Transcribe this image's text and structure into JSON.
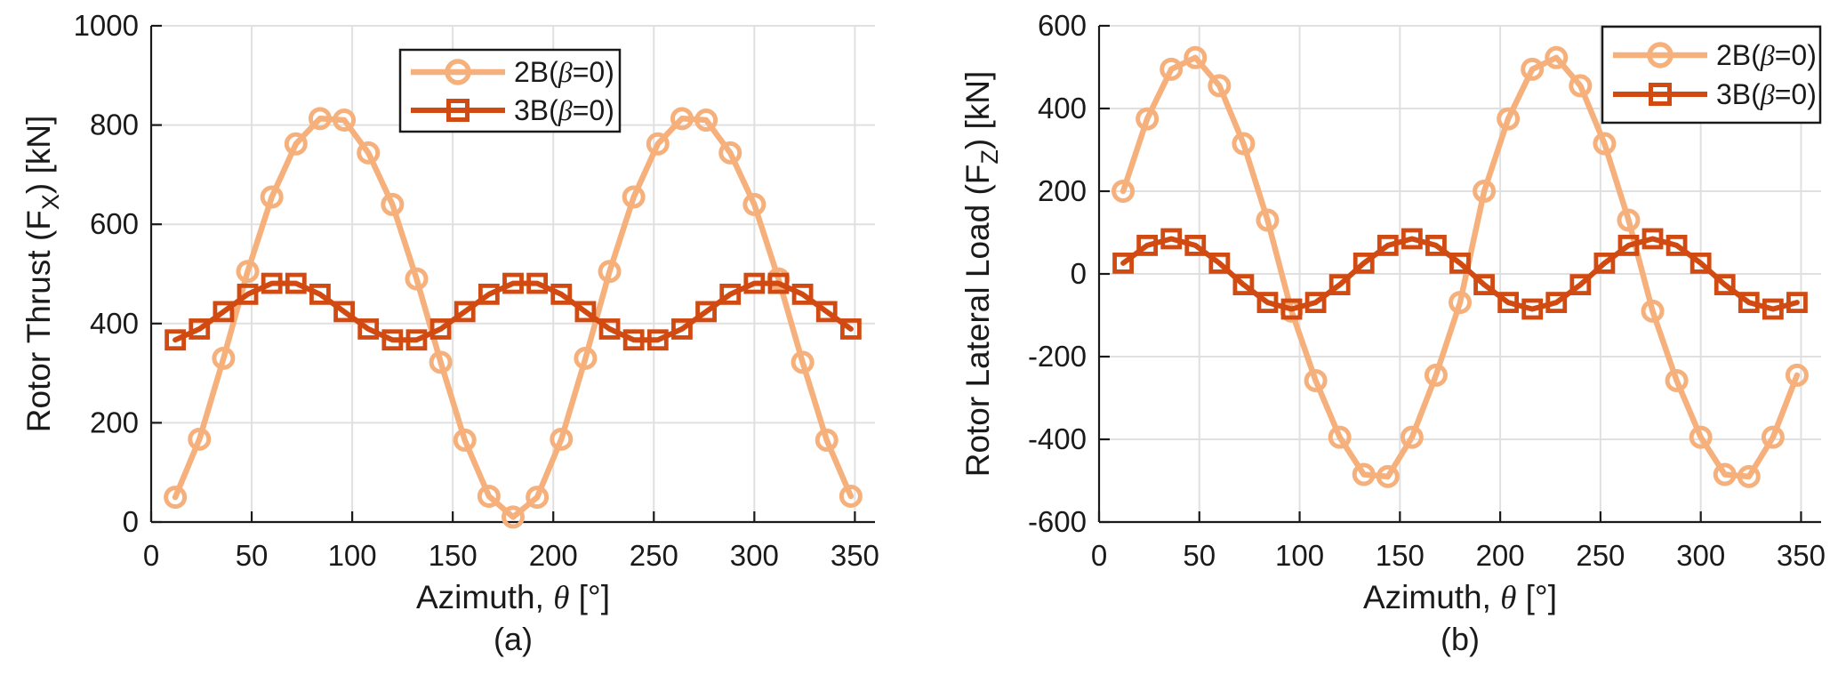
{
  "figure": {
    "background": "#FFFFFF",
    "axis_color": "#1A1A1A",
    "grid_color": "#E0E0E0",
    "text_color": "#1A1A1A",
    "series_colors": {
      "two_blade": "#F6B07B",
      "three_blade": "#D04A12"
    }
  },
  "chart_data": [
    {
      "panel": "a",
      "type": "line",
      "caption": "(a)",
      "xlabel_parts": {
        "pre": "Azimuth, ",
        "symbol": "θ",
        "post": " [°]"
      },
      "ylabel_parts": {
        "pre": "Rotor Thrust (F",
        "sub": "X",
        "post": ") [kN]"
      },
      "xlim": [
        0,
        360
      ],
      "ylim": [
        0,
        1000
      ],
      "xticks": [
        0,
        50,
        100,
        150,
        200,
        250,
        300,
        350
      ],
      "yticks": [
        0,
        200,
        400,
        600,
        800,
        1000
      ],
      "grid": true,
      "legend_position": "top-right-inside",
      "x": [
        12,
        24,
        36,
        48,
        60,
        72,
        84,
        96,
        108,
        120,
        132,
        144,
        156,
        168,
        180,
        192,
        204,
        216,
        228,
        240,
        252,
        264,
        276,
        288,
        300,
        312,
        324,
        336,
        348
      ],
      "series": [
        {
          "id": "2B",
          "label_pre": "2B(",
          "label_symbol": "β",
          "label_post": "=0)",
          "color": "#F6B07B",
          "marker": "circle",
          "values": [
            50,
            167,
            330,
            505,
            655,
            762,
            813,
            810,
            744,
            640,
            490,
            322,
            165,
            52,
            10,
            50,
            167,
            330,
            505,
            655,
            762,
            813,
            810,
            744,
            640,
            490,
            322,
            165,
            52
          ]
        },
        {
          "id": "3B",
          "label_pre": "3B(",
          "label_symbol": "β",
          "label_post": "=0)",
          "color": "#D04A12",
          "marker": "square",
          "values": [
            367,
            389,
            424,
            459,
            481,
            481,
            459,
            424,
            389,
            367,
            367,
            389,
            424,
            459,
            481,
            481,
            459,
            424,
            389,
            367,
            367,
            389,
            424,
            459,
            481,
            481,
            459,
            424,
            389
          ]
        }
      ]
    },
    {
      "panel": "b",
      "type": "line",
      "caption": "(b)",
      "xlabel_parts": {
        "pre": "Azimuth, ",
        "symbol": "θ",
        "post": " [°]"
      },
      "ylabel_parts": {
        "pre": "Rotor Lateral Load (F",
        "sub": "Z",
        "post": ") [kN]"
      },
      "xlim": [
        0,
        360
      ],
      "ylim": [
        -600,
        600
      ],
      "xticks": [
        0,
        50,
        100,
        150,
        200,
        250,
        300,
        350
      ],
      "yticks": [
        -600,
        -400,
        -200,
        0,
        200,
        400,
        600
      ],
      "grid": true,
      "legend_position": "top-right-inside",
      "x": [
        12,
        24,
        36,
        48,
        60,
        72,
        84,
        96,
        108,
        120,
        132,
        144,
        156,
        168,
        180,
        192,
        204,
        216,
        228,
        240,
        252,
        264,
        276,
        288,
        300,
        312,
        324,
        336,
        348
      ],
      "series": [
        {
          "id": "2B",
          "label_pre": "2B(",
          "label_symbol": "β",
          "label_post": "=0)",
          "color": "#F6B07B",
          "marker": "circle",
          "values": [
            200,
            375,
            495,
            523,
            455,
            315,
            130,
            -90,
            -258,
            -395,
            -485,
            -490,
            -395,
            -245,
            -69,
            200,
            375,
            495,
            523,
            455,
            315,
            130,
            -90,
            -258,
            -395,
            -485,
            -490,
            -395,
            -245
          ]
        },
        {
          "id": "3B",
          "label_pre": "3B(",
          "label_symbol": "β",
          "label_post": "=0)",
          "color": "#D04A12",
          "marker": "square",
          "values": [
            26,
            69,
            85,
            69,
            26,
            -26,
            -69,
            -85,
            -69,
            -26,
            26,
            69,
            85,
            69,
            26,
            -26,
            -69,
            -85,
            -69,
            -26,
            26,
            69,
            85,
            69,
            26,
            -26,
            -69,
            -85,
            -69
          ]
        }
      ]
    }
  ]
}
